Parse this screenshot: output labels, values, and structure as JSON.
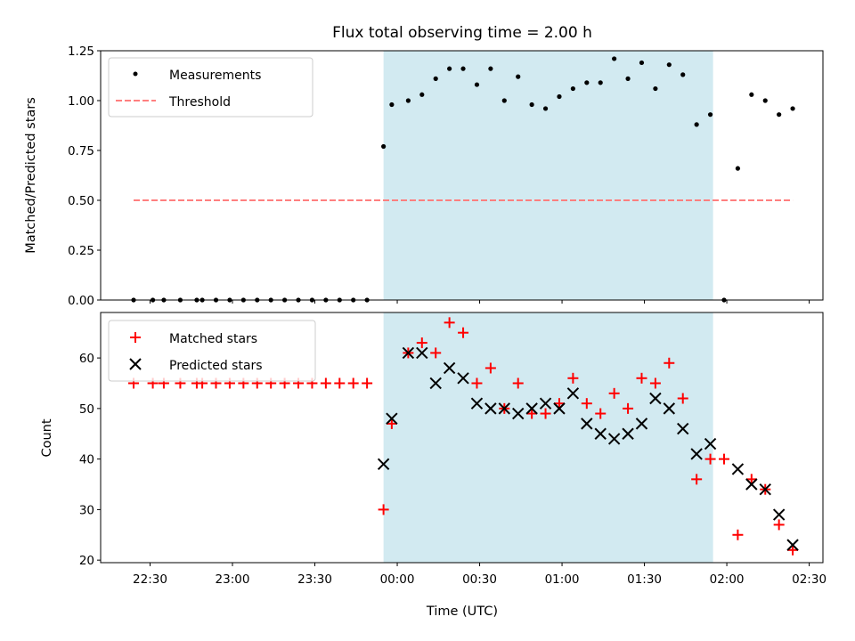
{
  "title": "Flux total observing time = 2.00 h",
  "colors": {
    "shade": "#add8e6",
    "threshold": "#ff7f7f",
    "matched": "#ff0000",
    "predicted": "#000000",
    "measurement": "#000000"
  },
  "chart_data": [
    {
      "type": "scatter",
      "ylabel": "Matched/Predicted stars",
      "xlabel": "",
      "ylim": [
        0,
        1.25
      ],
      "yticks": [
        0,
        0.25,
        0.5,
        0.75,
        1.0,
        1.25
      ],
      "ytick_labels": [
        "0.00",
        "0.25",
        "0.50",
        "0.75",
        "1.00",
        "1.25"
      ],
      "xlim": [
        "22:12",
        "02:35"
      ],
      "shaded_region": [
        "23:55",
        "01:55"
      ],
      "legend": [
        "Measurements",
        "Threshold"
      ],
      "legend_position": "upper-left",
      "threshold": {
        "name": "Threshold",
        "value": 0.5,
        "x": [
          "22:24",
          "02:24"
        ]
      },
      "series": [
        {
          "name": "Measurements",
          "marker": "dot",
          "x": [
            "22:24",
            "22:31",
            "22:35",
            "22:41",
            "22:47",
            "22:49",
            "22:54",
            "22:59",
            "23:04",
            "23:09",
            "23:14",
            "23:19",
            "23:24",
            "23:29",
            "23:34",
            "23:39",
            "23:44",
            "23:49",
            "23:55",
            "23:58",
            "00:04",
            "00:09",
            "00:14",
            "00:19",
            "00:24",
            "00:29",
            "00:34",
            "00:39",
            "00:44",
            "00:49",
            "00:54",
            "00:59",
            "01:04",
            "01:09",
            "01:14",
            "01:19",
            "01:24",
            "01:29",
            "01:34",
            "01:39",
            "01:44",
            "01:49",
            "01:54",
            "01:59",
            "02:04",
            "02:09",
            "02:14",
            "02:19",
            "02:24"
          ],
          "values": [
            0,
            0,
            0,
            0,
            0,
            0,
            0,
            0,
            0,
            0,
            0,
            0,
            0,
            0,
            0,
            0,
            0,
            0,
            0.77,
            0.98,
            1.0,
            1.03,
            1.11,
            1.16,
            1.16,
            1.08,
            1.16,
            1.0,
            1.12,
            0.98,
            0.96,
            1.02,
            1.06,
            1.09,
            1.09,
            1.21,
            1.11,
            1.19,
            1.06,
            1.18,
            1.13,
            0.88,
            0.93,
            0.0,
            0.66,
            1.03,
            1.0,
            0.93,
            0.96
          ]
        }
      ]
    },
    {
      "type": "scatter",
      "ylabel": "Count",
      "xlabel": "Time (UTC)",
      "ylim": [
        19.5,
        69
      ],
      "yticks": [
        20,
        30,
        40,
        50,
        60
      ],
      "ytick_labels": [
        "20",
        "30",
        "40",
        "50",
        "60"
      ],
      "xlim": [
        "22:12",
        "02:35"
      ],
      "xticks": [
        "22:30",
        "23:00",
        "23:30",
        "00:00",
        "00:30",
        "01:00",
        "01:30",
        "02:00",
        "02:30"
      ],
      "shaded_region": [
        "23:55",
        "01:55"
      ],
      "legend": [
        "Matched stars",
        "Predicted stars"
      ],
      "legend_position": "upper-left",
      "series": [
        {
          "name": "Matched stars",
          "marker": "plus",
          "x": [
            "22:24",
            "22:31",
            "22:35",
            "22:41",
            "22:47",
            "22:49",
            "22:54",
            "22:59",
            "23:04",
            "23:09",
            "23:14",
            "23:19",
            "23:24",
            "23:29",
            "23:34",
            "23:39",
            "23:44",
            "23:49",
            "23:55",
            "23:58",
            "00:04",
            "00:09",
            "00:14",
            "00:19",
            "00:24",
            "00:29",
            "00:34",
            "00:39",
            "00:44",
            "00:49",
            "00:54",
            "00:59",
            "01:04",
            "01:09",
            "01:14",
            "01:19",
            "01:24",
            "01:29",
            "01:34",
            "01:39",
            "01:44",
            "01:49",
            "01:54",
            "01:59",
            "02:04",
            "02:09",
            "02:14",
            "02:19",
            "02:24"
          ],
          "values": [
            55,
            55,
            55,
            55,
            55,
            55,
            55,
            55,
            55,
            55,
            55,
            55,
            55,
            55,
            55,
            55,
            55,
            55,
            30,
            47,
            61,
            63,
            61,
            67,
            65,
            55,
            58,
            50,
            55,
            49,
            49,
            51,
            56,
            51,
            49,
            53,
            50,
            56,
            55,
            59,
            52,
            36,
            40,
            40,
            25,
            36,
            34,
            27,
            22
          ]
        },
        {
          "name": "Predicted stars",
          "marker": "x",
          "x": [
            "23:55",
            "23:58",
            "00:04",
            "00:09",
            "00:14",
            "00:19",
            "00:24",
            "00:29",
            "00:34",
            "00:39",
            "00:44",
            "00:49",
            "00:54",
            "00:59",
            "01:04",
            "01:09",
            "01:14",
            "01:19",
            "01:24",
            "01:29",
            "01:34",
            "01:39",
            "01:44",
            "01:49",
            "01:54",
            "02:04",
            "02:09",
            "02:14",
            "02:19",
            "02:24"
          ],
          "values": [
            39,
            48,
            61,
            61,
            55,
            58,
            56,
            51,
            50,
            50,
            49,
            50,
            51,
            50,
            53,
            47,
            45,
            44,
            45,
            47,
            52,
            50,
            46,
            41,
            43,
            38,
            35,
            34,
            29,
            23
          ]
        }
      ]
    }
  ]
}
